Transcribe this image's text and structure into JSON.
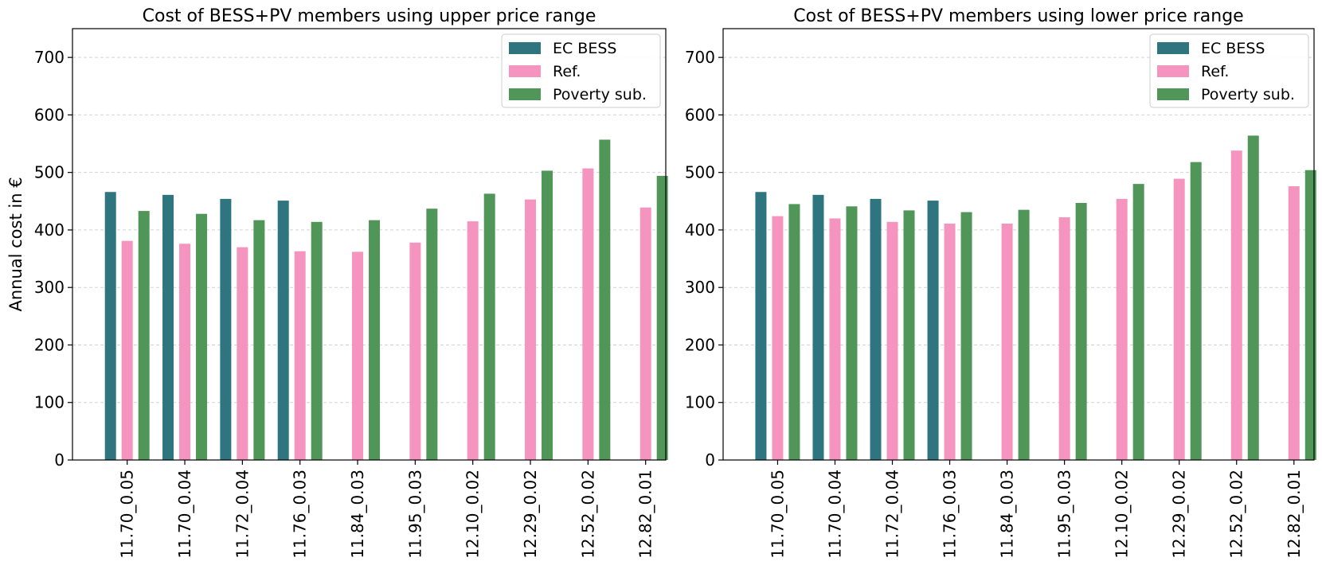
{
  "chart_data": [
    {
      "type": "bar",
      "title": "Cost of BESS+PV members using upper price range",
      "xlabel": "",
      "ylabel": "Annual cost in €",
      "ylim": [
        0,
        750
      ],
      "yticks": [
        0,
        100,
        200,
        300,
        400,
        500,
        600,
        700
      ],
      "grid": "y-dashed",
      "legend": "top-right",
      "categories": [
        "11.70_0.05",
        "11.70_0.04",
        "11.72_0.04",
        "11.76_0.03",
        "11.84_0.03",
        "11.95_0.03",
        "12.10_0.02",
        "12.29_0.02",
        "12.52_0.02",
        "12.82_0.01"
      ],
      "series": [
        {
          "name": "EC BESS",
          "color": "#2e7580",
          "values": [
            466,
            461,
            454,
            451,
            null,
            null,
            null,
            null,
            null,
            null
          ]
        },
        {
          "name": "Ref.",
          "color": "#f595bf",
          "values": [
            381,
            376,
            370,
            363,
            362,
            378,
            415,
            453,
            507,
            439
          ]
        },
        {
          "name": "Poverty sub.",
          "color": "#519659",
          "values": [
            433,
            428,
            417,
            414,
            417,
            437,
            463,
            503,
            557,
            494
          ]
        }
      ]
    },
    {
      "type": "bar",
      "title": "Cost of BESS+PV members using  lower price range",
      "xlabel": "",
      "ylabel": "",
      "ylim": [
        0,
        750
      ],
      "yticks": [
        0,
        100,
        200,
        300,
        400,
        500,
        600,
        700
      ],
      "grid": "y-dashed",
      "legend": "top-right",
      "categories": [
        "11.70_0.05",
        "11.70_0.04",
        "11.72_0.04",
        "11.76_0.03",
        "11.84_0.03",
        "11.95_0.03",
        "12.10_0.02",
        "12.29_0.02",
        "12.52_0.02",
        "12.82_0.01"
      ],
      "series": [
        {
          "name": "EC BESS",
          "color": "#2e7580",
          "values": [
            466,
            461,
            454,
            451,
            null,
            null,
            null,
            null,
            null,
            null
          ]
        },
        {
          "name": "Ref.",
          "color": "#f595bf",
          "values": [
            424,
            420,
            414,
            411,
            411,
            422,
            454,
            489,
            538,
            476
          ]
        },
        {
          "name": "Poverty sub.",
          "color": "#519659",
          "values": [
            445,
            441,
            434,
            431,
            435,
            447,
            480,
            518,
            564,
            504
          ]
        }
      ]
    }
  ]
}
